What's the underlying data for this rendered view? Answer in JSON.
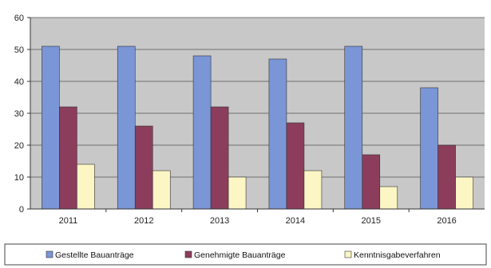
{
  "chart_data": {
    "type": "bar",
    "categories": [
      "2011",
      "2012",
      "2013",
      "2014",
      "2015",
      "2016"
    ],
    "series": [
      {
        "name": "Gestellte Bauanträge",
        "values": [
          51,
          51,
          48,
          47,
          51,
          38
        ],
        "color": "#7b96d6"
      },
      {
        "name": "Genehmigte Bauanträge",
        "values": [
          32,
          26,
          32,
          27,
          17,
          20
        ],
        "color": "#8c3d5c"
      },
      {
        "name": "Kenntnisgabeverfahren",
        "values": [
          14,
          12,
          10,
          12,
          7,
          10
        ],
        "color": "#fbf6c4"
      }
    ],
    "ylim": [
      0,
      60
    ],
    "yticks": [
      "0",
      "10",
      "20",
      "30",
      "40",
      "50",
      "60"
    ],
    "grid": true,
    "legend_position": "bottom",
    "plot_background": "#c8c8c8"
  }
}
